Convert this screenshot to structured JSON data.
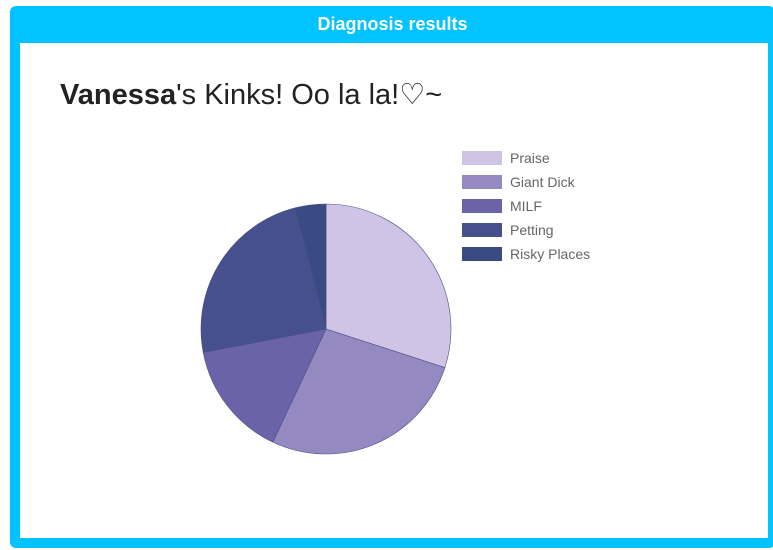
{
  "header": {
    "title": "Diagnosis results"
  },
  "result": {
    "name": "Vanessa",
    "title_rest": "'s Kinks! Oo la la!♡~"
  },
  "chart_data": {
    "type": "pie",
    "title": "",
    "legend_position": "top-right",
    "slices": [
      {
        "label": "Praise",
        "value": 30,
        "color": "#cfc4e6"
      },
      {
        "label": "Giant Dick",
        "value": 27,
        "color": "#9489c0"
      },
      {
        "label": "MILF",
        "value": 15,
        "color": "#6a63a8"
      },
      {
        "label": "Petting",
        "value": 24,
        "color": "#45508d"
      },
      {
        "label": "Risky Places",
        "value": 4,
        "color": "#3a4a82"
      }
    ]
  }
}
